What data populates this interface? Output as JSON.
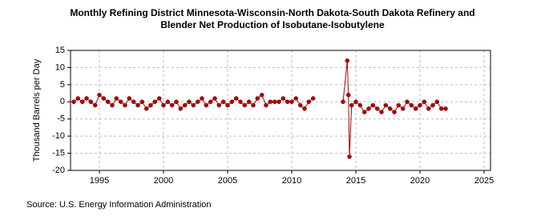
{
  "chart_data": {
    "type": "line",
    "title": "Monthly Refining District Minnesota-Wisconsin-North Dakota-South Dakota Refinery and Blender Net Production of Isobutane-Isobutylene",
    "y_label": "Thousand Barrels per Day",
    "source": "Source: U.S. Energy Information Administration",
    "x": [
      1993.0,
      1993.33,
      1993.67,
      1994.0,
      1994.33,
      1994.67,
      1995.0,
      1995.33,
      1995.67,
      1996.0,
      1996.33,
      1996.67,
      1997.0,
      1997.33,
      1997.67,
      1998.0,
      1998.33,
      1998.67,
      1999.0,
      1999.33,
      1999.67,
      2000.0,
      2000.33,
      2000.67,
      2001.0,
      2001.33,
      2001.67,
      2002.0,
      2002.33,
      2002.67,
      2003.0,
      2003.33,
      2003.67,
      2004.0,
      2004.33,
      2004.67,
      2005.0,
      2005.33,
      2005.67,
      2006.0,
      2006.33,
      2006.67,
      2007.0,
      2007.33,
      2007.67,
      2008.0,
      2008.33,
      2008.67,
      2009.0,
      2009.33,
      2009.67,
      2010.0,
      2010.33,
      2010.67,
      2011.0,
      2011.33,
      2011.67,
      2012.0,
      2013.0,
      2014.0,
      2014.33,
      2014.42,
      2014.5,
      2014.67,
      2015.0,
      2015.33,
      2015.67,
      2016.0,
      2016.33,
      2016.67,
      2017.0,
      2017.33,
      2017.67,
      2018.0,
      2018.33,
      2018.67,
      2019.0,
      2019.33,
      2019.67,
      2020.0,
      2020.33,
      2020.67,
      2021.0,
      2021.33,
      2021.67,
      2022.0
    ],
    "series": [
      {
        "name": "Net Production",
        "color": "#b00000",
        "values": [
          0,
          1,
          0,
          1,
          0,
          -1,
          2,
          1,
          0,
          -1,
          1,
          0,
          -1,
          1,
          0,
          -1,
          0,
          -2,
          -1,
          0,
          1,
          -1,
          0,
          -1,
          0,
          -2,
          -1,
          0,
          -1,
          0,
          1,
          -1,
          0,
          1,
          -1,
          0,
          -1,
          0,
          1,
          0,
          -1,
          0,
          -1,
          1,
          2,
          -1,
          0,
          0,
          0,
          1,
          0,
          0,
          1,
          -1,
          -2,
          0,
          1,
          null,
          null,
          0,
          12,
          2,
          -16,
          -1,
          0,
          -1,
          -3,
          -2,
          -1,
          -2,
          -3,
          -1,
          -2,
          -3,
          -1,
          -2,
          0,
          -1,
          -2,
          -1,
          0,
          -2,
          -1,
          0,
          -2,
          -2
        ]
      }
    ],
    "xlim": [
      1992.75,
      2025.5
    ],
    "ylim": [
      -20,
      15
    ],
    "xticks": [
      1995,
      2000,
      2005,
      2010,
      2015,
      2020,
      2025
    ],
    "yticks": [
      -20,
      -15,
      -10,
      -5,
      0,
      5,
      10,
      15
    ],
    "grid": true
  }
}
